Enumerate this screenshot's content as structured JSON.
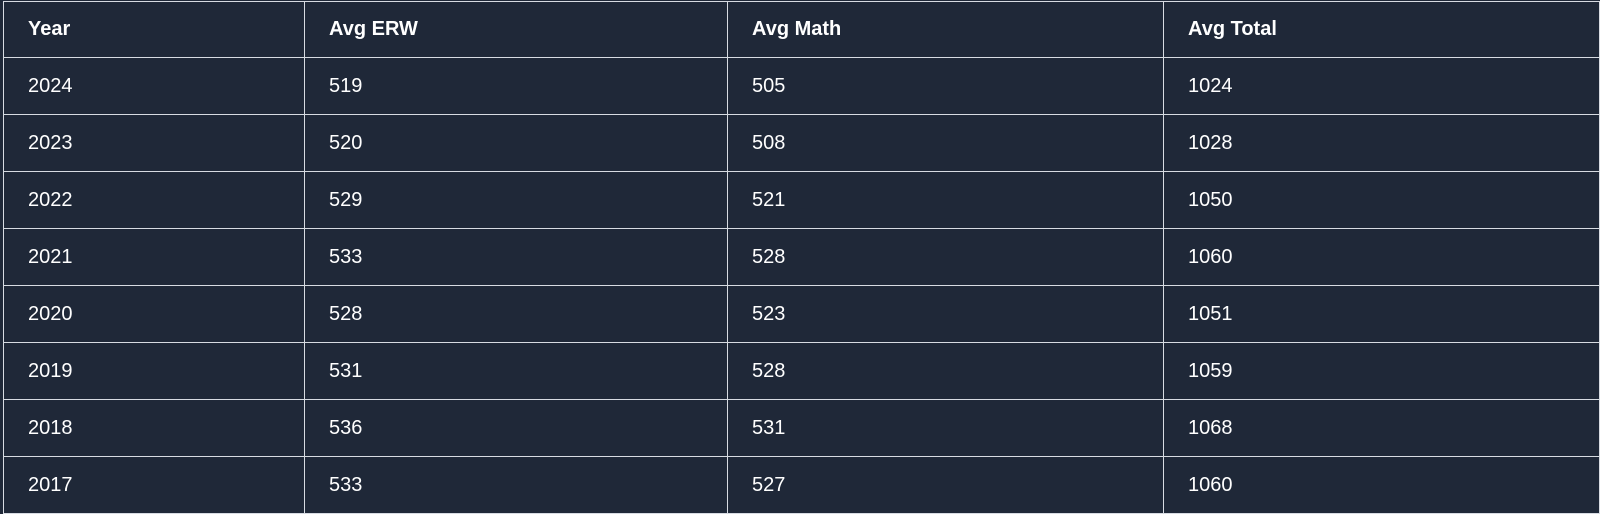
{
  "table": {
    "headers": [
      "Year",
      "Avg ERW",
      "Avg Math",
      "Avg Total"
    ],
    "rows": [
      [
        "2024",
        "519",
        "505",
        "1024"
      ],
      [
        "2023",
        "520",
        "508",
        "1028"
      ],
      [
        "2022",
        "529",
        "521",
        "1050"
      ],
      [
        "2021",
        "533",
        "528",
        "1060"
      ],
      [
        "2020",
        "528",
        "523",
        "1051"
      ],
      [
        "2019",
        "531",
        "528",
        "1059"
      ],
      [
        "2018",
        "536",
        "531",
        "1068"
      ],
      [
        "2017",
        "533",
        "527",
        "1060"
      ]
    ]
  },
  "colors": {
    "background": "#1f2838",
    "border": "#d7dbe2",
    "text": "#ffffff"
  }
}
